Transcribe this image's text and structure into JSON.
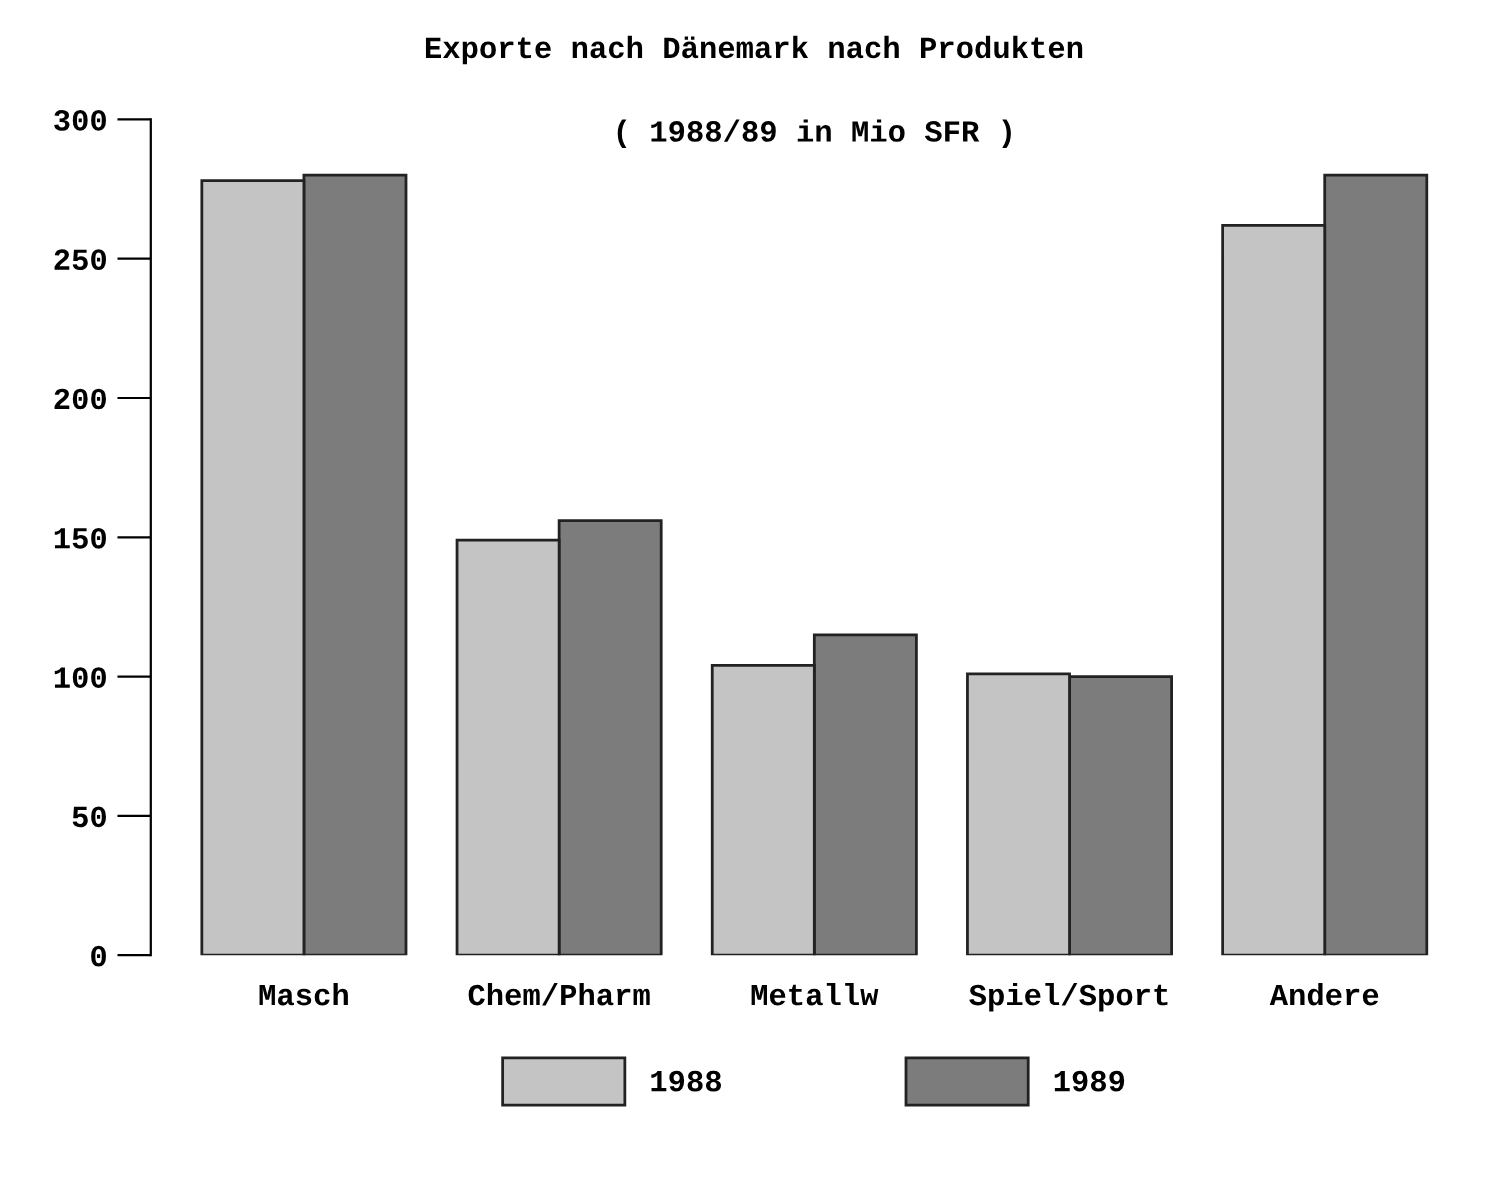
{
  "chart_data": {
    "type": "bar",
    "title": "Exporte nach Dänemark nach Produkten",
    "subtitle": "( 1988/89 in Mio SFR )",
    "categories": [
      "Masch",
      "Chem/Pharm",
      "Metallw",
      "Spiel/Sport",
      "Andere"
    ],
    "series": [
      {
        "name": "1988",
        "color": "#c4c4c4",
        "values": [
          278,
          149,
          104,
          101,
          262
        ]
      },
      {
        "name": "1989",
        "color": "#7c7c7c",
        "values": [
          280,
          156,
          115,
          100,
          280
        ]
      }
    ],
    "ylim": [
      0,
      300
    ],
    "yticks": [
      0,
      50,
      100,
      150,
      200,
      250,
      300
    ],
    "grid": false,
    "legend": "bottom"
  }
}
